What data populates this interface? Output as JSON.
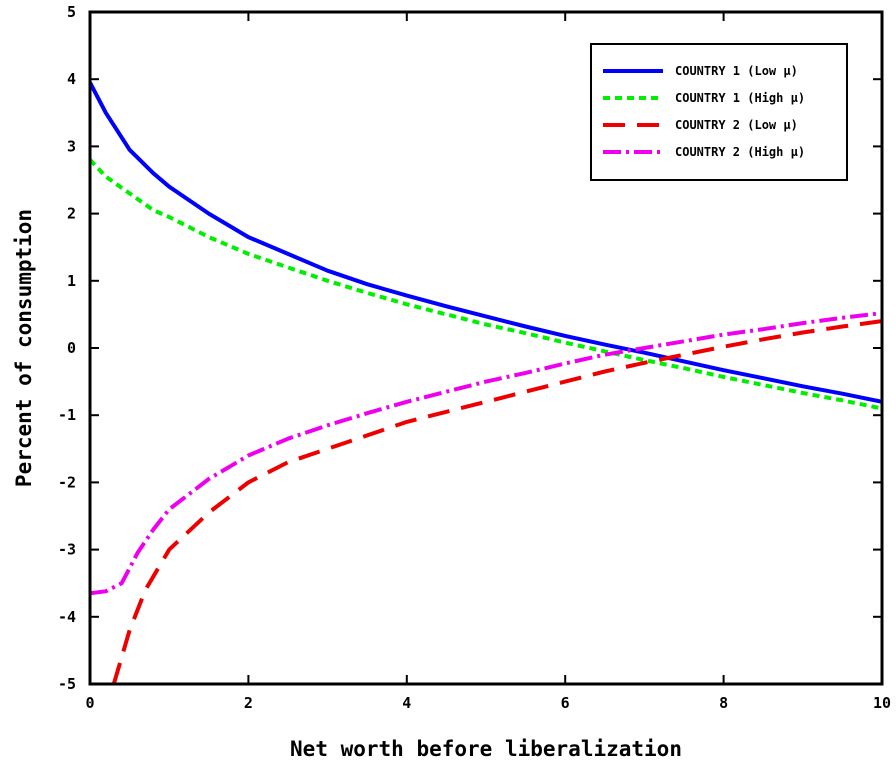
{
  "chart_data": {
    "type": "line",
    "title": "",
    "xlabel": "Net worth before liberalization",
    "ylabel": "Percent of consumption",
    "xlim": [
      0,
      10
    ],
    "ylim": [
      -5,
      5
    ],
    "xticks": [
      "0",
      "2",
      "4",
      "6",
      "8",
      "10"
    ],
    "yticks": [
      "-5",
      "-4",
      "-3",
      "-2",
      "-1",
      "0",
      "1",
      "2",
      "3",
      "4",
      "5"
    ],
    "grid": false,
    "legend_position": "top-right",
    "series": [
      {
        "name": "COUNTRY 1 (Low μ)",
        "color": "#0000ff",
        "style": "solid",
        "x": [
          0,
          0.2,
          0.5,
          0.8,
          1.0,
          1.5,
          2,
          2.5,
          3,
          3.5,
          4,
          4.5,
          5,
          5.5,
          6,
          6.5,
          7,
          7.5,
          8,
          8.5,
          9,
          9.5,
          10
        ],
        "y": [
          3.95,
          3.5,
          2.95,
          2.6,
          2.4,
          2.0,
          1.65,
          1.4,
          1.15,
          0.95,
          0.78,
          0.62,
          0.47,
          0.32,
          0.18,
          0.05,
          -0.07,
          -0.2,
          -0.33,
          -0.45,
          -0.57,
          -0.68,
          -0.8
        ]
      },
      {
        "name": "COUNTRY 1 (High μ)",
        "color": "#00ee00",
        "style": "dotted",
        "x": [
          0,
          0.2,
          0.5,
          0.8,
          1.0,
          1.5,
          2,
          2.5,
          3,
          3.5,
          4,
          4.5,
          5,
          5.5,
          6,
          6.5,
          7,
          7.5,
          8,
          8.5,
          9,
          9.5,
          10
        ],
        "y": [
          2.8,
          2.55,
          2.3,
          2.05,
          1.95,
          1.65,
          1.4,
          1.2,
          1.0,
          0.82,
          0.65,
          0.5,
          0.35,
          0.22,
          0.08,
          -0.05,
          -0.18,
          -0.3,
          -0.43,
          -0.55,
          -0.67,
          -0.78,
          -0.9
        ]
      },
      {
        "name": "COUNTRY 2 (Low μ)",
        "color": "#ee0000",
        "style": "dashed",
        "x": [
          0.3,
          0.5,
          0.7,
          0.9,
          1.0,
          1.5,
          2,
          2.5,
          3,
          3.5,
          4,
          4.5,
          5,
          5.5,
          6,
          6.5,
          7,
          7.5,
          8,
          8.5,
          9,
          9.5,
          10
        ],
        "y": [
          -5.0,
          -4.2,
          -3.6,
          -3.2,
          -3.0,
          -2.45,
          -2.0,
          -1.7,
          -1.5,
          -1.3,
          -1.1,
          -0.95,
          -0.8,
          -0.65,
          -0.5,
          -0.35,
          -0.22,
          -0.1,
          0.02,
          0.13,
          0.23,
          0.32,
          0.4
        ]
      },
      {
        "name": "COUNTRY 2 (High μ)",
        "color": "#ee00ee",
        "style": "dash-dot",
        "x": [
          0,
          0.2,
          0.4,
          0.6,
          0.8,
          1.0,
          1.5,
          2,
          2.5,
          3,
          3.5,
          4,
          4.5,
          5,
          5.5,
          6,
          6.5,
          7,
          7.5,
          8,
          8.5,
          9,
          9.5,
          10
        ],
        "y": [
          -3.65,
          -3.62,
          -3.5,
          -3.05,
          -2.7,
          -2.4,
          -1.95,
          -1.6,
          -1.35,
          -1.15,
          -0.97,
          -0.8,
          -0.65,
          -0.5,
          -0.37,
          -0.23,
          -0.1,
          0.0,
          0.1,
          0.2,
          0.28,
          0.37,
          0.45,
          0.52
        ]
      }
    ]
  }
}
